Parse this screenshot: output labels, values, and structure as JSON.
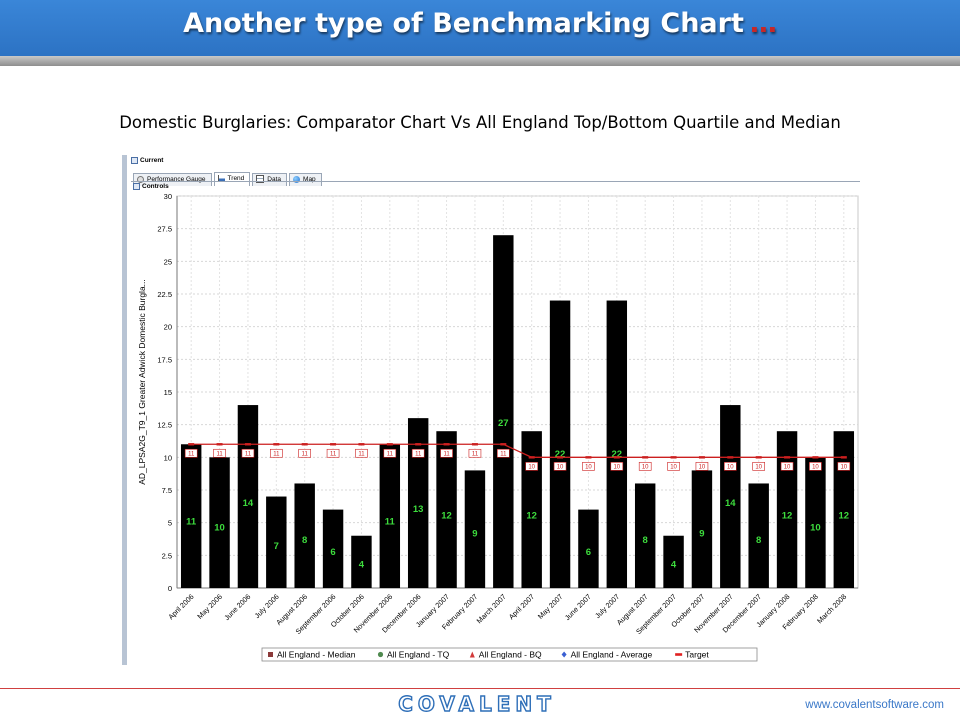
{
  "header": {
    "title": "Another type of Benchmarking Chart",
    "ellipsis": "…"
  },
  "subtitle": "Domestic Burglaries: Comparator Chart Vs All England Top/Bottom Quartile and Median",
  "panel": {
    "current_label": "Current",
    "controls_label": "Controls",
    "tabs": [
      {
        "label": "Performance Gauge",
        "icon": "gauge-icon"
      },
      {
        "label": "Trend",
        "icon": "trend-chart-icon",
        "active": true
      },
      {
        "label": "Data",
        "icon": "data-table-icon"
      },
      {
        "label": "Map",
        "icon": "globe-icon"
      }
    ]
  },
  "chart_data": {
    "type": "bar",
    "title": "",
    "ylabel": "AD_LPSA2G_T9_1 Greater Adwick Domestic Burgla...",
    "xlabel": "",
    "ylim": [
      0,
      30
    ],
    "yticks": [
      "0",
      "2.5",
      "5",
      "7.5",
      "10",
      "12.5",
      "15",
      "17.5",
      "20",
      "22.5",
      "25",
      "27.5",
      "30"
    ],
    "grid": true,
    "categories": [
      "April 2006",
      "May 2006",
      "June 2006",
      "July 2006",
      "August 2006",
      "September 2006",
      "October 2006",
      "November 2006",
      "December 2006",
      "January 2007",
      "February 2007",
      "March 2007",
      "April 2007",
      "May 2007",
      "June 2007",
      "July 2007",
      "August 2007",
      "September 2007",
      "October 2007",
      "November 2007",
      "December 2007",
      "January 2008",
      "February 2008",
      "March 2008"
    ],
    "values": [
      11,
      10,
      14,
      7,
      8,
      6,
      4,
      11,
      13,
      12,
      9,
      27,
      12,
      22,
      6,
      22,
      8,
      4,
      9,
      14,
      8,
      12,
      10,
      12
    ],
    "target": [
      11,
      11,
      11,
      11,
      11,
      11,
      11,
      11,
      11,
      11,
      11,
      11,
      10,
      10,
      10,
      10,
      10,
      10,
      10,
      10,
      10,
      10,
      10,
      10
    ],
    "legend_position": "bottom",
    "legend": [
      {
        "name": "All England - Median",
        "marker": "square",
        "color": "#8b3a3a"
      },
      {
        "name": "All England - TQ",
        "marker": "circle",
        "color": "#4f8a4f"
      },
      {
        "name": "All England - BQ",
        "marker": "triangle",
        "color": "#d23a3a"
      },
      {
        "name": "All England - Average",
        "marker": "diamond",
        "color": "#3a5fd2"
      },
      {
        "name": "Target",
        "marker": "dash",
        "color": "#e02020"
      }
    ],
    "colors": {
      "bar": "#000000",
      "bar_label": "#3ddc3d",
      "target": "#cc1f1f"
    }
  },
  "footer": {
    "logo_text": "COVALENT",
    "url": "www.covalentsoftware.com"
  },
  "colors": {
    "header_bg": "#2a6fc0",
    "accent": "#c62828",
    "logo": "#2f6fb8"
  }
}
